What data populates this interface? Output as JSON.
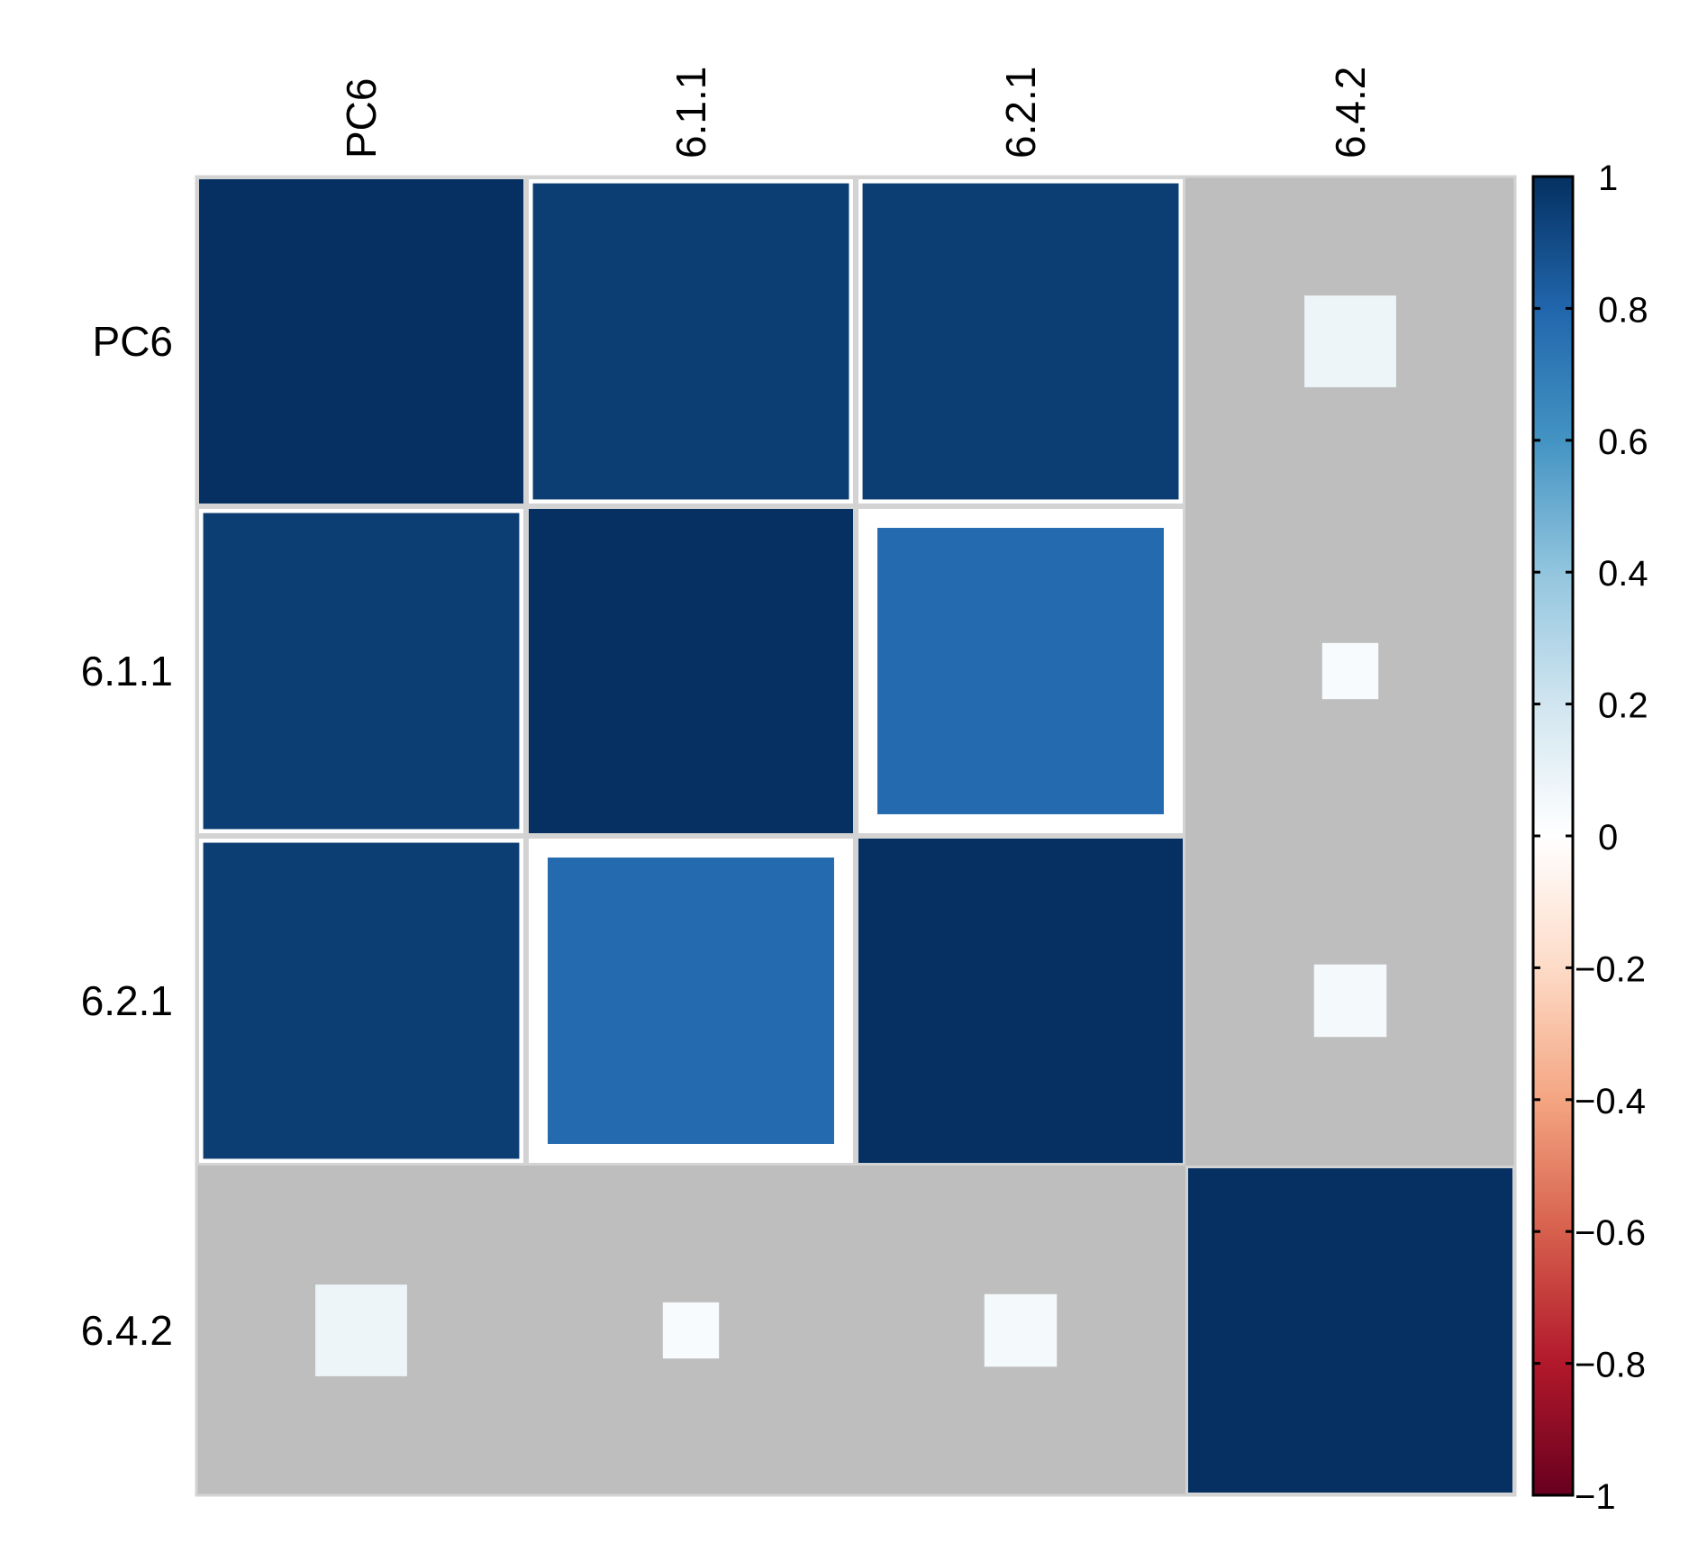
{
  "chart_data": {
    "type": "heatmap",
    "variables": [
      "PC6",
      "6.1.1",
      "6.2.1",
      "6.4.2"
    ],
    "matrix": [
      [
        1.0,
        0.95,
        0.95,
        0.08
      ],
      [
        0.95,
        1.0,
        0.78,
        0.03
      ],
      [
        0.95,
        0.78,
        1.0,
        0.05
      ],
      [
        0.08,
        0.03,
        0.05,
        1.0
      ]
    ],
    "significant": [
      [
        true,
        true,
        true,
        false
      ],
      [
        true,
        true,
        true,
        false
      ],
      [
        true,
        true,
        true,
        false
      ],
      [
        false,
        false,
        false,
        true
      ]
    ],
    "colorbar": {
      "range": [
        -1,
        1
      ],
      "ticks": [
        "1",
        "0.8",
        "0.6",
        "0.4",
        "0.2",
        "0",
        "−0.2",
        "−0.4",
        "−0.6",
        "−0.8",
        "−1"
      ],
      "tick_values": [
        1,
        0.8,
        0.6,
        0.4,
        0.2,
        0,
        -0.2,
        -0.4,
        -0.6,
        -0.8,
        -1
      ],
      "colors": [
        "#67001F",
        "#B2182B",
        "#D6604D",
        "#F4A582",
        "#FDDBC7",
        "#FFFFFF",
        "#D1E5F0",
        "#92C5DE",
        "#4393C3",
        "#2166AC",
        "#053061"
      ]
    },
    "background_color": "#BEBEBE",
    "grid_color": "#D3D3D3",
    "legend_position": "right"
  }
}
